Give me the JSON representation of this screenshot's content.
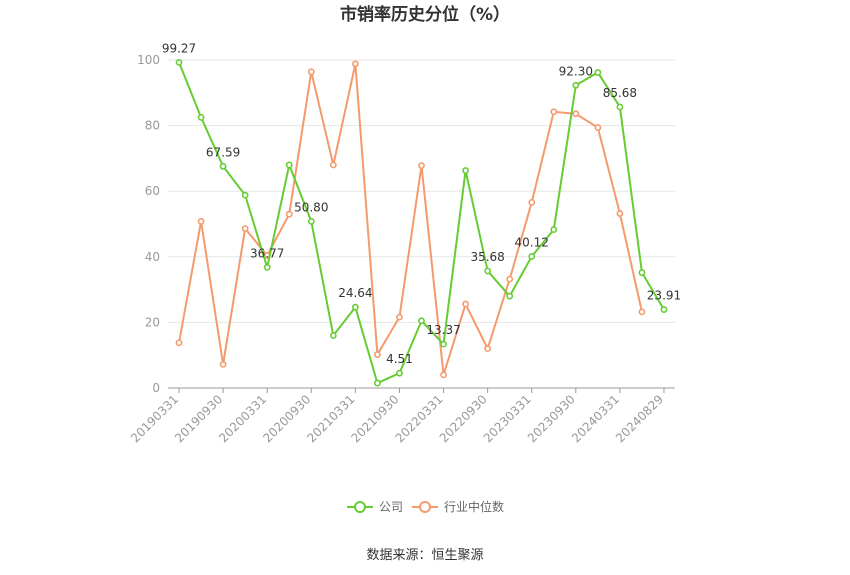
{
  "chart_data": {
    "type": "line",
    "title": "市销率历史分位（%）",
    "xlabel": "",
    "ylabel": "",
    "ylim": [
      0,
      100
    ],
    "yticks": [
      0,
      20,
      40,
      60,
      80,
      100
    ],
    "grid": true,
    "legend_position": "bottom",
    "x_tick_labels": [
      "20190331",
      "20190930",
      "20200331",
      "20200930",
      "20210331",
      "20210930",
      "20220331",
      "20220930",
      "20230331",
      "20230930",
      "20240331",
      "20240829"
    ],
    "x_tick_points": [
      0,
      2,
      4,
      6,
      8,
      10,
      12,
      14,
      16,
      18,
      20,
      22
    ],
    "series": [
      {
        "name": "公司",
        "color": "#66cc33",
        "values": [
          99.27,
          82.5,
          67.59,
          58.8,
          36.77,
          68.0,
          50.8,
          16.0,
          24.64,
          1.5,
          4.51,
          20.5,
          13.37,
          66.3,
          35.68,
          28.0,
          40.12,
          48.3,
          92.3,
          96.2,
          85.68,
          35.2,
          23.91
        ],
        "data_labels": [
          {
            "index": 0,
            "text": "99.27"
          },
          {
            "index": 2,
            "text": "67.59"
          },
          {
            "index": 4,
            "text": "36.77"
          },
          {
            "index": 6,
            "text": "50.80"
          },
          {
            "index": 8,
            "text": "24.64"
          },
          {
            "index": 10,
            "text": "4.51"
          },
          {
            "index": 12,
            "text": "13.37"
          },
          {
            "index": 14,
            "text": "35.68"
          },
          {
            "index": 16,
            "text": "40.12"
          },
          {
            "index": 18,
            "text": "92.30"
          },
          {
            "index": 20,
            "text": "85.68"
          },
          {
            "index": 22,
            "text": "23.91"
          }
        ]
      },
      {
        "name": "行业中位数",
        "color": "#f59a6c",
        "values": [
          13.8,
          50.8,
          7.2,
          48.6,
          40.4,
          53.0,
          96.4,
          68.0,
          98.8,
          10.2,
          21.6,
          67.8,
          4.0,
          25.6,
          12.0,
          33.2,
          56.6,
          84.2,
          83.6,
          79.4,
          53.2,
          23.2,
          null
        ]
      }
    ]
  },
  "legend": {
    "company_label": "公司",
    "industry_label": "行业中位数"
  },
  "source": "数据来源：恒生聚源"
}
